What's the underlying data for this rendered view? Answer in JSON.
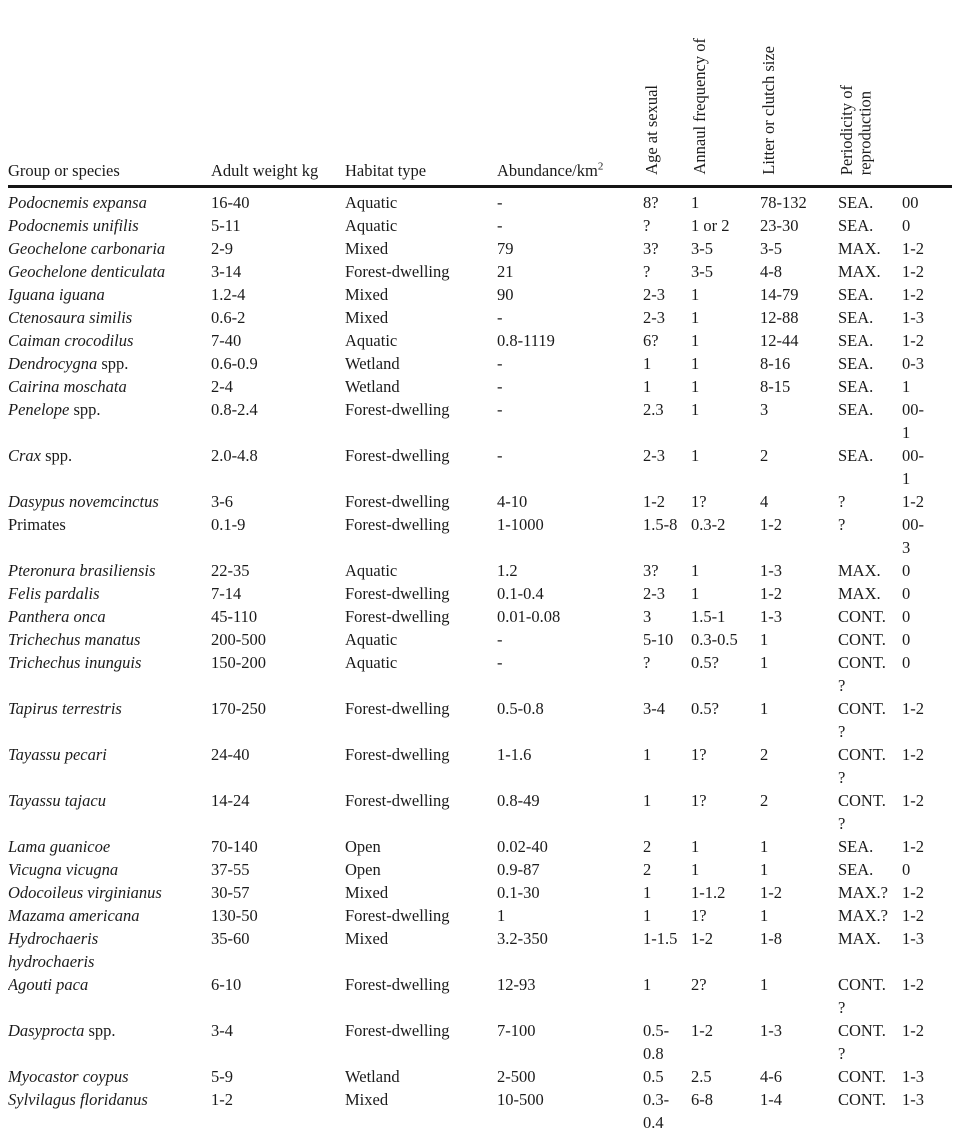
{
  "table": {
    "headers": [
      {
        "label": "Group or species",
        "rotated": false
      },
      {
        "label": "Adult weight kg",
        "rotated": false
      },
      {
        "label": "Habitat type",
        "rotated": false
      },
      {
        "label": "Abundance/km",
        "sup": "2",
        "rotated": false
      },
      {
        "label": "Age at sexual",
        "rotated": true
      },
      {
        "label": "Annaul frequency of",
        "rotated": true
      },
      {
        "label": "Litter or clutch size",
        "rotated": true
      },
      {
        "label": "Periodicity of\nreproduction",
        "rotated": true
      },
      {
        "label": "",
        "rotated": false
      }
    ],
    "rows": [
      {
        "species_italic": "Podocnemis expansa",
        "species_plain": "",
        "weight": "16-40",
        "habitat": "Aquatic",
        "abundance": "-",
        "age_at_maturity": "8?",
        "annual_frequency": "1",
        "litter_size": "78-132",
        "periodicity": "SEA.",
        "extra": "00"
      },
      {
        "species_italic": "Podocnemis unifilis",
        "species_plain": "",
        "weight": "5-11",
        "habitat": "Aquatic",
        "abundance": "-",
        "age_at_maturity": "?",
        "annual_frequency": "1 or 2",
        "litter_size": "23-30",
        "periodicity": "SEA.",
        "extra": "0"
      },
      {
        "species_italic": "Geochelone carbonaria",
        "species_plain": "",
        "weight": "2-9",
        "habitat": "Mixed",
        "abundance": "79",
        "age_at_maturity": "3?",
        "annual_frequency": "3-5",
        "litter_size": "3-5",
        "periodicity": "MAX.",
        "extra": "1-2"
      },
      {
        "species_italic": "Geochelone denticulata",
        "species_plain": "",
        "weight": "3-14",
        "habitat": "Forest-dwelling",
        "abundance": "21",
        "age_at_maturity": "?",
        "annual_frequency": "3-5",
        "litter_size": "4-8",
        "periodicity": "MAX.",
        "extra": "1-2"
      },
      {
        "species_italic": "Iguana iguana",
        "species_plain": "",
        "weight": "1.2-4",
        "habitat": "Mixed",
        "abundance": "90",
        "age_at_maturity": "2-3",
        "annual_frequency": "1",
        "litter_size": "14-79",
        "periodicity": "SEA.",
        "extra": "1-2"
      },
      {
        "species_italic": "Ctenosaura similis",
        "species_plain": "",
        "weight": "0.6-2",
        "habitat": "Mixed",
        "abundance": "-",
        "age_at_maturity": "2-3",
        "annual_frequency": "1",
        "litter_size": "12-88",
        "periodicity": "SEA.",
        "extra": "1-3"
      },
      {
        "species_italic": "Caiman crocodilus",
        "species_plain": "",
        "weight": "7-40",
        "habitat": "Aquatic",
        "abundance": "0.8-1119",
        "age_at_maturity": "6?",
        "annual_frequency": "1",
        "litter_size": "12-44",
        "periodicity": "SEA.",
        "extra": "1-2"
      },
      {
        "species_italic": "Dendrocygna",
        "species_plain": " spp.",
        "weight": "0.6-0.9",
        "habitat": "Wetland",
        "abundance": "-",
        "age_at_maturity": "1",
        "annual_frequency": "1",
        "litter_size": "8-16",
        "periodicity": "SEA.",
        "extra": "0-3"
      },
      {
        "species_italic": "Cairina moschata",
        "species_plain": "",
        "weight": "2-4",
        "habitat": "Wetland",
        "abundance": "-",
        "age_at_maturity": "1",
        "annual_frequency": "1",
        "litter_size": "8-15",
        "periodicity": "SEA.",
        "extra": "1"
      },
      {
        "species_italic": "Penelope",
        "species_plain": " spp.",
        "weight": "0.8-2.4",
        "habitat": "Forest-dwelling",
        "abundance": "-",
        "age_at_maturity": "2.3",
        "annual_frequency": "1",
        "litter_size": "3",
        "periodicity": "SEA.",
        "extra": "00-\n1"
      },
      {
        "species_italic": "Crax",
        "species_plain": " spp.",
        "weight": "2.0-4.8",
        "habitat": "Forest-dwelling",
        "abundance": "-",
        "age_at_maturity": "2-3",
        "annual_frequency": "1",
        "litter_size": "2",
        "periodicity": "SEA.",
        "extra": "00-\n1"
      },
      {
        "species_italic": "Dasypus novemcinctus",
        "species_plain": "",
        "weight": "3-6",
        "habitat": "Forest-dwelling",
        "abundance": "4-10",
        "age_at_maturity": "1-2",
        "annual_frequency": "1?",
        "litter_size": "4",
        "periodicity": "?",
        "extra": "1-2"
      },
      {
        "species_italic": "",
        "species_plain": "Primates",
        "weight": "0.1-9",
        "habitat": "Forest-dwelling",
        "abundance": "1-1000",
        "age_at_maturity": "1.5-8",
        "annual_frequency": "0.3-2",
        "litter_size": "1-2",
        "periodicity": "?",
        "extra": "00-\n3"
      },
      {
        "species_italic": "Pteronura brasiliensis",
        "species_plain": "",
        "weight": "22-35",
        "habitat": "Aquatic",
        "abundance": "1.2",
        "age_at_maturity": "3?",
        "annual_frequency": "1",
        "litter_size": "1-3",
        "periodicity": "MAX.",
        "extra": "0"
      },
      {
        "species_italic": "Felis pardalis",
        "species_plain": "",
        "weight": "7-14",
        "habitat": "Forest-dwelling",
        "abundance": "0.1-0.4",
        "age_at_maturity": "2-3",
        "annual_frequency": "1",
        "litter_size": "1-2",
        "periodicity": "MAX.",
        "extra": "0"
      },
      {
        "species_italic": "Panthera onca",
        "species_plain": "",
        "weight": "45-110",
        "habitat": "Forest-dwelling",
        "abundance": "0.01-0.08",
        "age_at_maturity": "3",
        "annual_frequency": "1.5-1",
        "litter_size": "1-3",
        "periodicity": "CONT.",
        "extra": "0"
      },
      {
        "species_italic": "Trichechus manatus",
        "species_plain": "",
        "weight": "200-500",
        "habitat": "Aquatic",
        "abundance": "-",
        "age_at_maturity": "5-10",
        "annual_frequency": "0.3-0.5",
        "litter_size": "1",
        "periodicity": "CONT.",
        "extra": "0"
      },
      {
        "species_italic": "Trichechus inunguis",
        "species_plain": "",
        "weight": "150-200",
        "habitat": "Aquatic",
        "abundance": "-",
        "age_at_maturity": "?",
        "annual_frequency": "0.5?",
        "litter_size": "1",
        "periodicity": "CONT.\n?",
        "extra": "0"
      },
      {
        "species_italic": "Tapirus terrestris",
        "species_plain": "",
        "weight": "170-250",
        "habitat": "Forest-dwelling",
        "abundance": "0.5-0.8",
        "age_at_maturity": "3-4",
        "annual_frequency": "0.5?",
        "litter_size": "1",
        "periodicity": "CONT.\n?",
        "extra": "1-2"
      },
      {
        "species_italic": "Tayassu pecari",
        "species_plain": "",
        "weight": "24-40",
        "habitat": "Forest-dwelling",
        "abundance": "1-1.6",
        "age_at_maturity": "1",
        "annual_frequency": "1?",
        "litter_size": "2",
        "periodicity": "CONT.\n?",
        "extra": "1-2"
      },
      {
        "species_italic": "Tayassu tajacu",
        "species_plain": "",
        "weight": "14-24",
        "habitat": "Forest-dwelling",
        "abundance": "0.8-49",
        "age_at_maturity": "1",
        "annual_frequency": "1?",
        "litter_size": "2",
        "periodicity": "CONT.\n?",
        "extra": "1-2"
      },
      {
        "species_italic": "Lama guanicoe",
        "species_plain": "",
        "weight": "70-140",
        "habitat": "Open",
        "abundance": "0.02-40",
        "age_at_maturity": "2",
        "annual_frequency": "1",
        "litter_size": "1",
        "periodicity": "SEA.",
        "extra": "1-2"
      },
      {
        "species_italic": "Vicugna vicugna",
        "species_plain": "",
        "weight": "37-55",
        "habitat": "Open",
        "abundance": "0.9-87",
        "age_at_maturity": "2",
        "annual_frequency": "1",
        "litter_size": "1",
        "periodicity": "SEA.",
        "extra": "0"
      },
      {
        "species_italic": "Odocoileus virginianus",
        "species_plain": "",
        "weight": "30-57",
        "habitat": "Mixed",
        "abundance": "0.1-30",
        "age_at_maturity": "1",
        "annual_frequency": "1-1.2",
        "litter_size": "1-2",
        "periodicity": "MAX.?",
        "extra": "1-2"
      },
      {
        "species_italic": "Mazama americana",
        "species_plain": "",
        "weight": "130-50",
        "habitat": "Forest-dwelling",
        "abundance": "1",
        "age_at_maturity": "1",
        "annual_frequency": "1?",
        "litter_size": "1",
        "periodicity": "MAX.?",
        "extra": "1-2"
      },
      {
        "species_italic": "Hydrochaeris\nhydrochaeris",
        "species_plain": "",
        "weight": "35-60",
        "habitat": "Mixed",
        "abundance": "3.2-350",
        "age_at_maturity": "1-1.5",
        "annual_frequency": "1-2",
        "litter_size": "1-8",
        "periodicity": "MAX.",
        "extra": "1-3"
      },
      {
        "species_italic": "Agouti paca",
        "species_plain": "",
        "weight": "6-10",
        "habitat": "Forest-dwelling",
        "abundance": "12-93",
        "age_at_maturity": "1",
        "annual_frequency": "2?",
        "litter_size": "1",
        "periodicity": "CONT.\n?",
        "extra": "1-2"
      },
      {
        "species_italic": "Dasyprocta",
        "species_plain": " spp.",
        "weight": "3-4",
        "habitat": "Forest-dwelling",
        "abundance": "7-100",
        "age_at_maturity": "0.5-\n0.8",
        "annual_frequency": "1-2",
        "litter_size": "1-3",
        "periodicity": "CONT.\n?",
        "extra": "1-2"
      },
      {
        "species_italic": "Myocastor coypus",
        "species_plain": "",
        "weight": "5-9",
        "habitat": "Wetland",
        "abundance": "2-500",
        "age_at_maturity": "0.5",
        "annual_frequency": "2.5",
        "litter_size": "4-6",
        "periodicity": "CONT.",
        "extra": "1-3"
      },
      {
        "species_italic": "Sylvilagus floridanus",
        "species_plain": "",
        "weight": "1-2",
        "habitat": "Mixed",
        "abundance": "10-500",
        "age_at_maturity": "0.3-\n0.4",
        "annual_frequency": "6-8",
        "litter_size": "1-4",
        "periodicity": "CONT.",
        "extra": "1-3"
      }
    ]
  }
}
